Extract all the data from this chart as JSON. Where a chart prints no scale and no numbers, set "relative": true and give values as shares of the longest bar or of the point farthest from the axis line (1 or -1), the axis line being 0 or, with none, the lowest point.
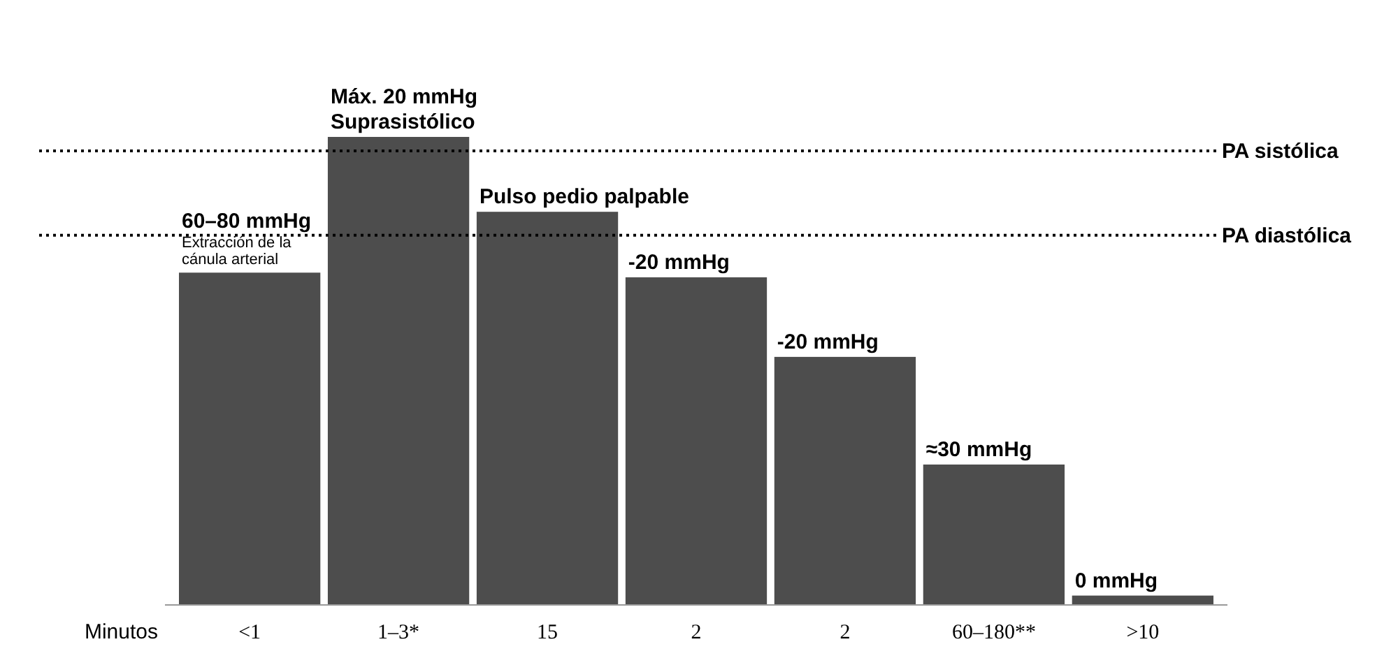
{
  "chart_data": {
    "type": "bar",
    "relative": true,
    "xlabel": "Minutos",
    "categories": [
      "<1",
      "1–3*",
      "15",
      "2",
      "2",
      "60–180**",
      ">10"
    ],
    "values": [
      0.71,
      1,
      0.84,
      0.7,
      0.53,
      0.3,
      0.02
    ],
    "color": "#4d4d4d",
    "annotations": [
      "60–80 mmHg",
      "Extracción de la cánula arterial",
      "Máx. 20 mmHg",
      "Suprasistólico",
      "Pulso pedio palpable",
      "-20 mmHg",
      "-20 mmHg",
      "≈30 mmHg",
      "0 mmHg"
    ],
    "ref_lines": [
      {
        "axis": "y",
        "value": 0.97,
        "label": "PA sistólica",
        "color": "#000000",
        "line_style": "dotted"
      },
      {
        "axis": "y",
        "value": 0.79,
        "label": "PA diastólica",
        "color": "#000000",
        "line_style": "dotted"
      }
    ]
  }
}
